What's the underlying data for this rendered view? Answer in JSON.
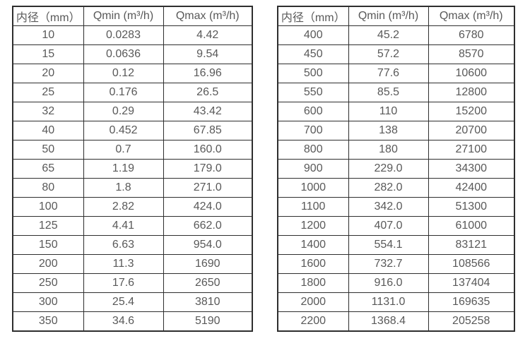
{
  "page": {
    "background": "#ffffff",
    "text_color": "#595959",
    "border_color": "#2e2e2e"
  },
  "tables": [
    {
      "name": "flow-spec-table-small-diameters",
      "headers": [
        "内径（mm）",
        "Qmin (m³/h)",
        "Qmax (m³/h)"
      ],
      "rows": [
        [
          "10",
          "0.0283",
          "4.42"
        ],
        [
          "15",
          "0.0636",
          "9.54"
        ],
        [
          "20",
          "0.12",
          "16.96"
        ],
        [
          "25",
          "0.176",
          "26.5"
        ],
        [
          "32",
          "0.29",
          "43.42"
        ],
        [
          "40",
          "0.452",
          "67.85"
        ],
        [
          "50",
          "0.7",
          "160.0"
        ],
        [
          "65",
          "1.19",
          "179.0"
        ],
        [
          "80",
          "1.8",
          "271.0"
        ],
        [
          "100",
          "2.82",
          "424.0"
        ],
        [
          "125",
          "4.41",
          "662.0"
        ],
        [
          "150",
          "6.63",
          "954.0"
        ],
        [
          "200",
          "11.3",
          "1690"
        ],
        [
          "250",
          "17.6",
          "2650"
        ],
        [
          "300",
          "25.4",
          "3810"
        ],
        [
          "350",
          "34.6",
          "5190"
        ]
      ]
    },
    {
      "name": "flow-spec-table-large-diameters",
      "headers": [
        "内径（mm）",
        "Qmin (m³/h)",
        "Qmax (m³/h)"
      ],
      "rows": [
        [
          "400",
          "45.2",
          "6780"
        ],
        [
          "450",
          "57.2",
          "8570"
        ],
        [
          "500",
          "77.6",
          "10600"
        ],
        [
          "550",
          "85.5",
          "12800"
        ],
        [
          "600",
          "110",
          "15200"
        ],
        [
          "700",
          "138",
          "20700"
        ],
        [
          "800",
          "180",
          "27100"
        ],
        [
          "900",
          "229.0",
          "34300"
        ],
        [
          "1000",
          "282.0",
          "42400"
        ],
        [
          "1100",
          "342.0",
          "51300"
        ],
        [
          "1200",
          "407.0",
          "61000"
        ],
        [
          "1400",
          "554.1",
          "83121"
        ],
        [
          "1600",
          "732.7",
          "108566"
        ],
        [
          "1800",
          "916.0",
          "137404"
        ],
        [
          "2000",
          "1131.0",
          "169635"
        ],
        [
          "2200",
          "1368.4",
          "205258"
        ]
      ]
    }
  ]
}
